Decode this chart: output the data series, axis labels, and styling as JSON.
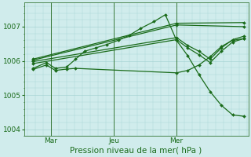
{
  "title": "Pression niveau de la mer( hPa )",
  "bg_color": "#d0ecec",
  "grid_color": "#a8d4d4",
  "line_color": "#1a6b1a",
  "spine_color": "#3a7a3a",
  "ylim": [
    1003.8,
    1007.7
  ],
  "yticks": [
    1004,
    1005,
    1006,
    1007
  ],
  "ylabel_fontsize": 6.5,
  "xlabel_fontsize": 7.5,
  "xtick_fontsize": 6.5,
  "figsize": [
    3.2,
    2.0
  ],
  "dpi": 100,
  "vline_x": [
    0.12,
    0.4,
    0.68
  ],
  "xtick_positions": [
    0.12,
    0.4,
    0.68
  ],
  "xtick_labels": [
    "Mar",
    "Jeu",
    "Mer"
  ],
  "xlim": [
    0.0,
    1.0
  ],
  "marker": "D",
  "markersize": 2.0,
  "linewidth": 0.9,
  "lines": [
    {
      "x": [
        0.04,
        0.1,
        0.14,
        0.19,
        0.23,
        0.27,
        0.32,
        0.37,
        0.42,
        0.47,
        0.52,
        0.58,
        0.63,
        0.68,
        0.73,
        0.78,
        0.83,
        0.88,
        0.93,
        0.98
      ],
      "y": [
        1005.78,
        1005.95,
        1005.78,
        1005.82,
        1006.05,
        1006.28,
        1006.38,
        1006.48,
        1006.6,
        1006.75,
        1006.95,
        1007.15,
        1007.35,
        1006.6,
        1006.15,
        1005.6,
        1005.1,
        1004.7,
        1004.42,
        1004.38
      ]
    },
    {
      "x": [
        0.04,
        0.1,
        0.14,
        0.19,
        0.23,
        0.68,
        0.73,
        0.78,
        0.83,
        0.88,
        0.93,
        0.98
      ],
      "y": [
        1005.75,
        1005.88,
        1005.72,
        1005.76,
        1005.78,
        1005.65,
        1005.72,
        1005.88,
        1006.12,
        1006.42,
        1006.6,
        1006.65
      ]
    },
    {
      "x": [
        0.04,
        0.68,
        0.73,
        0.78,
        0.83,
        0.88,
        0.93,
        0.98
      ],
      "y": [
        1005.92,
        1006.62,
        1006.38,
        1006.18,
        1005.95,
        1006.28,
        1006.55,
        1006.65
      ]
    },
    {
      "x": [
        0.04,
        0.68,
        0.73,
        0.78,
        0.83,
        0.88,
        0.93,
        0.98
      ],
      "y": [
        1005.98,
        1006.68,
        1006.45,
        1006.28,
        1006.05,
        1006.38,
        1006.62,
        1006.72
      ]
    },
    {
      "x": [
        0.04,
        0.68,
        0.98
      ],
      "y": [
        1006.02,
        1007.05,
        1007.0
      ]
    },
    {
      "x": [
        0.04,
        0.68,
        0.98
      ],
      "y": [
        1006.05,
        1007.1,
        1007.12
      ]
    }
  ]
}
